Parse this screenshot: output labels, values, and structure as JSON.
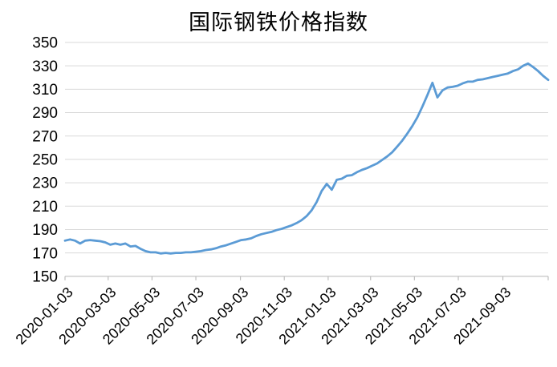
{
  "title": "国际钢铁价格指数",
  "chart_data": {
    "type": "line",
    "title": "国际钢铁价格指数",
    "xlabel": "",
    "ylabel": "",
    "ylim": [
      150,
      350
    ],
    "y_ticks": [
      150,
      170,
      190,
      210,
      230,
      250,
      270,
      290,
      310,
      330,
      350
    ],
    "x_tick_labels": [
      "2020-01-03",
      "2020-03-03",
      "2020-05-03",
      "2020-07-03",
      "2020-09-03",
      "2020-11-03",
      "2021-01-03",
      "2021-03-03",
      "2021-05-03",
      "2021-07-03",
      "2021-09-03"
    ],
    "grid": "horizontal",
    "legend": "none",
    "colors": {
      "line": "#5B9BD5",
      "grid": "#D9D9D9",
      "axis": "#BFBFBF",
      "text": "#000000"
    },
    "series": [
      {
        "name": "国际钢铁价格指数",
        "x": [
          "2020-01-03",
          "2020-01-10",
          "2020-01-17",
          "2020-01-24",
          "2020-01-31",
          "2020-02-07",
          "2020-02-14",
          "2020-02-21",
          "2020-02-28",
          "2020-03-06",
          "2020-03-13",
          "2020-03-20",
          "2020-03-27",
          "2020-04-03",
          "2020-04-10",
          "2020-04-17",
          "2020-04-24",
          "2020-05-01",
          "2020-05-08",
          "2020-05-15",
          "2020-05-22",
          "2020-05-29",
          "2020-06-05",
          "2020-06-12",
          "2020-06-19",
          "2020-06-26",
          "2020-07-03",
          "2020-07-10",
          "2020-07-17",
          "2020-07-24",
          "2020-07-31",
          "2020-08-07",
          "2020-08-14",
          "2020-08-21",
          "2020-08-28",
          "2020-09-04",
          "2020-09-11",
          "2020-09-18",
          "2020-09-25",
          "2020-10-02",
          "2020-10-09",
          "2020-10-16",
          "2020-10-23",
          "2020-10-30",
          "2020-11-06",
          "2020-11-13",
          "2020-11-20",
          "2020-11-27",
          "2020-12-04",
          "2020-12-11",
          "2020-12-18",
          "2020-12-25",
          "2021-01-01",
          "2021-01-08",
          "2021-01-15",
          "2021-01-22",
          "2021-01-29",
          "2021-02-05",
          "2021-02-12",
          "2021-02-19",
          "2021-02-26",
          "2021-03-05",
          "2021-03-12",
          "2021-03-19",
          "2021-03-26",
          "2021-04-02",
          "2021-04-09",
          "2021-04-16",
          "2021-04-23",
          "2021-04-30",
          "2021-05-07",
          "2021-05-14",
          "2021-05-21",
          "2021-05-28",
          "2021-06-04",
          "2021-06-11",
          "2021-06-18",
          "2021-06-25",
          "2021-07-02",
          "2021-07-09",
          "2021-07-16",
          "2021-07-23",
          "2021-07-30",
          "2021-08-06",
          "2021-08-13",
          "2021-08-20",
          "2021-08-27",
          "2021-09-03",
          "2021-09-10",
          "2021-09-17",
          "2021-09-24",
          "2021-10-01",
          "2021-10-08",
          "2021-10-15",
          "2021-10-22",
          "2021-10-29",
          "2021-11-05"
        ],
        "values": [
          180.5,
          181.5,
          180.5,
          178,
          180.5,
          181,
          180.5,
          180,
          179,
          177,
          178,
          177,
          178,
          175.5,
          176,
          173.5,
          171.5,
          170.5,
          170.5,
          169.5,
          170,
          169.5,
          170,
          170,
          170.5,
          170.5,
          171,
          171.5,
          172.5,
          173,
          174,
          175.5,
          176.5,
          178,
          179.5,
          181,
          181.5,
          182.5,
          184.5,
          186,
          187,
          188,
          189.5,
          190.5,
          192,
          193.5,
          195.5,
          198,
          201.5,
          206.5,
          213.5,
          223,
          229,
          224,
          232.5,
          233.5,
          236,
          236.5,
          239,
          241,
          242.5,
          244.5,
          246.5,
          249.5,
          252.5,
          256,
          261,
          266,
          272,
          278.5,
          286,
          295,
          305,
          315.5,
          303,
          309,
          311.5,
          312,
          313,
          315,
          316.5,
          316.5,
          318,
          318.5,
          319.5,
          320.5,
          321.5,
          322.5,
          323.5,
          325.5,
          327,
          330,
          332,
          329,
          325.5,
          321.5,
          318
        ]
      }
    ]
  }
}
